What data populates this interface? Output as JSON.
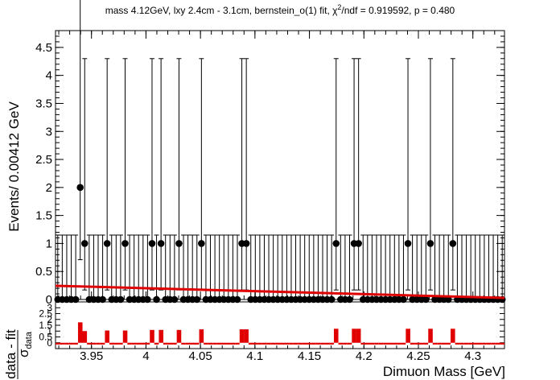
{
  "title": {
    "prefix": "mass 4.12GeV, lxy 2.4cm - 3.1cm, bernstein_o(1) fit, χ",
    "sup": "2",
    "suffix": "/ndf = 0.919592, p = 0.480"
  },
  "colors": {
    "data": "#000000",
    "fit": "#e00000",
    "pull": "#e00000",
    "frame": "#000000"
  },
  "chart_data": [
    {
      "type": "scatter",
      "panel": "main",
      "xlabel": "Dimuon Mass [GeV]",
      "ylabel": "Events/ 0.00412 GeV",
      "xlim": [
        3.917,
        4.329
      ],
      "ylim": [
        0,
        4.8
      ],
      "yticks": [
        0,
        0.5,
        1,
        1.5,
        2,
        2.5,
        3,
        3.5,
        4,
        4.5
      ],
      "ytick_labels": [
        "0",
        "0.5",
        "1",
        "1.5",
        "2",
        "2.5",
        "3",
        "3.5",
        "4",
        "4.5"
      ],
      "xticks": [
        3.95,
        4.0,
        4.05,
        4.1,
        4.15,
        4.2,
        4.25,
        4.3
      ],
      "xtick_labels": [
        "3.95",
        "4",
        "4.05",
        "4.1",
        "4.15",
        "4.2",
        "4.25",
        "4.3"
      ],
      "bin_width": 0.00412,
      "nbins": 100,
      "series": [
        {
          "kind": "data",
          "nonzero_bins": [
            {
              "x": 3.9397,
              "y": 2
            },
            {
              "x": 3.9438,
              "y": 1
            },
            {
              "x": 3.9644,
              "y": 1
            },
            {
              "x": 3.9809,
              "y": 1
            },
            {
              "x": 4.0056,
              "y": 1
            },
            {
              "x": 4.0139,
              "y": 1
            },
            {
              "x": 4.0303,
              "y": 1
            },
            {
              "x": 4.0509,
              "y": 1
            },
            {
              "x": 4.088,
              "y": 1
            },
            {
              "x": 4.0921,
              "y": 1
            },
            {
              "x": 4.1745,
              "y": 1
            },
            {
              "x": 4.191,
              "y": 1
            },
            {
              "x": 4.1951,
              "y": 1
            },
            {
              "x": 4.2405,
              "y": 1
            },
            {
              "x": 4.2611,
              "y": 1
            },
            {
              "x": 4.2816,
              "y": 1
            }
          ],
          "err_up": {
            "0": 1.15,
            "1": 3.3,
            "2": 4.64
          },
          "err_down": {
            "0": 0,
            "1": 0.83,
            "2": 1.29
          }
        },
        {
          "kind": "fit",
          "x": [
            3.917,
            4.329
          ],
          "y": [
            0.245,
            0.028
          ]
        }
      ]
    },
    {
      "type": "bar",
      "panel": "pull",
      "ylabel_top": "data - fit",
      "ylabel_bottom": "σ",
      "ylabel_sub": "data",
      "ylim": [
        -0.5,
        3.5
      ],
      "yticks": [
        0,
        0.5,
        1,
        1.5,
        2,
        2.5,
        3
      ],
      "ytick_labels": [
        "0",
        "0.5",
        "1",
        "1.5",
        "2",
        "2.5",
        "3"
      ],
      "pulls": [
        {
          "x": 3.9397,
          "y": 1.75
        },
        {
          "x": 3.9438,
          "y": 1.0
        },
        {
          "x": 3.9644,
          "y": 1.05
        },
        {
          "x": 3.9809,
          "y": 1.05
        },
        {
          "x": 4.0056,
          "y": 1.1
        },
        {
          "x": 4.0139,
          "y": 1.1
        },
        {
          "x": 4.0303,
          "y": 1.1
        },
        {
          "x": 4.0509,
          "y": 1.15
        },
        {
          "x": 4.088,
          "y": 1.15
        },
        {
          "x": 4.0921,
          "y": 1.15
        },
        {
          "x": 4.1745,
          "y": 1.2
        },
        {
          "x": 4.191,
          "y": 1.2
        },
        {
          "x": 4.1951,
          "y": 1.2
        },
        {
          "x": 4.2405,
          "y": 1.2
        },
        {
          "x": 4.2611,
          "y": 1.2
        },
        {
          "x": 4.2816,
          "y": 1.2
        }
      ],
      "baseline_pull": -0.15
    }
  ]
}
